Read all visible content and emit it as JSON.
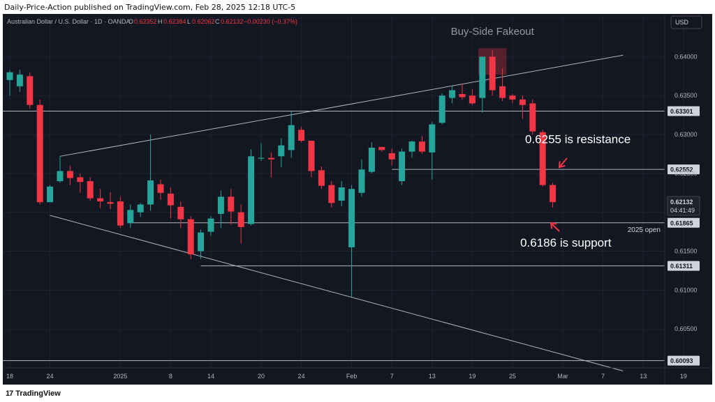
{
  "header": {
    "published_by": "Daily-Price-Action published on TradingView.com, Feb 28, 2025 12:18 UTC-5"
  },
  "symbol": {
    "name": "Australian Dollar / U.S. Dollar · 1D · OANDA",
    "ohlc_prefix_o": "O",
    "open": "0.62352",
    "ohlc_prefix_h": "H",
    "high": "0.62384",
    "ohlc_prefix_l": "L",
    "low": "0.62062",
    "ohlc_prefix_c": "C",
    "close": "0.62132",
    "change": "−0.00230 (−0.37%)"
  },
  "currency_button": "USD",
  "footer": {
    "brand": "TradingView",
    "brand_mark": "17"
  },
  "colors": {
    "background": "#131722",
    "up": "#26a69a",
    "down": "#f23645",
    "grid": "#1e2230",
    "level_line": "#b2b5be",
    "annotation": "#ffffff",
    "arrow": "#f23645",
    "axis_text": "#b2b5be"
  },
  "chart_data": {
    "type": "candlestick",
    "ylim": [
      0.6,
      0.6455
    ],
    "y_ticks": [
      "0.60000",
      "0.60500",
      "0.61000",
      "0.61500",
      "0.62000",
      "0.62500",
      "0.63000",
      "0.63500",
      "0.64000",
      "0.64500"
    ],
    "x_ticks": [
      "18",
      "24",
      "2025",
      "8",
      "14",
      "20",
      "24",
      "Feb",
      "7",
      "13",
      "19",
      "25",
      "Mar",
      "7",
      "13",
      "19"
    ],
    "x_tick_slots": [
      0,
      4,
      11,
      16,
      20,
      25,
      29,
      34,
      38,
      42,
      46,
      50,
      55,
      59,
      63,
      67
    ],
    "candles": [
      {
        "o": 0.637,
        "h": 0.6383,
        "l": 0.635,
        "c": 0.638
      },
      {
        "o": 0.6362,
        "h": 0.6383,
        "l": 0.6355,
        "c": 0.6377
      },
      {
        "o": 0.6375,
        "h": 0.638,
        "l": 0.6333,
        "c": 0.6338
      },
      {
        "o": 0.6338,
        "h": 0.6345,
        "l": 0.621,
        "c": 0.6213
      },
      {
        "o": 0.6213,
        "h": 0.6235,
        "l": 0.6213,
        "c": 0.6233
      },
      {
        "o": 0.624,
        "h": 0.6272,
        "l": 0.6238,
        "c": 0.6253
      },
      {
        "o": 0.6253,
        "h": 0.626,
        "l": 0.6235,
        "c": 0.6244
      },
      {
        "o": 0.6245,
        "h": 0.625,
        "l": 0.6225,
        "c": 0.6239
      },
      {
        "o": 0.624,
        "h": 0.6245,
        "l": 0.6215,
        "c": 0.6218
      },
      {
        "o": 0.6218,
        "h": 0.623,
        "l": 0.6205,
        "c": 0.6214
      },
      {
        "o": 0.6213,
        "h": 0.6226,
        "l": 0.6204,
        "c": 0.6211
      },
      {
        "o": 0.6214,
        "h": 0.622,
        "l": 0.618,
        "c": 0.6183
      },
      {
        "o": 0.6186,
        "h": 0.621,
        "l": 0.618,
        "c": 0.6203
      },
      {
        "o": 0.62,
        "h": 0.6212,
        "l": 0.6194,
        "c": 0.621
      },
      {
        "o": 0.621,
        "h": 0.63,
        "l": 0.6202,
        "c": 0.6241
      },
      {
        "o": 0.6236,
        "h": 0.6242,
        "l": 0.6216,
        "c": 0.6225
      },
      {
        "o": 0.6224,
        "h": 0.6232,
        "l": 0.6192,
        "c": 0.6209
      },
      {
        "o": 0.6207,
        "h": 0.6214,
        "l": 0.618,
        "c": 0.6191
      },
      {
        "o": 0.6191,
        "h": 0.6195,
        "l": 0.614,
        "c": 0.6146
      },
      {
        "o": 0.615,
        "h": 0.6178,
        "l": 0.614,
        "c": 0.6174
      },
      {
        "o": 0.6175,
        "h": 0.6195,
        "l": 0.617,
        "c": 0.6192
      },
      {
        "o": 0.6198,
        "h": 0.6228,
        "l": 0.618,
        "c": 0.622
      },
      {
        "o": 0.622,
        "h": 0.623,
        "l": 0.6184,
        "c": 0.6201
      },
      {
        "o": 0.62,
        "h": 0.621,
        "l": 0.616,
        "c": 0.6181
      },
      {
        "o": 0.6185,
        "h": 0.6281,
        "l": 0.6183,
        "c": 0.6272
      },
      {
        "o": 0.627,
        "h": 0.6289,
        "l": 0.6266,
        "c": 0.627
      },
      {
        "o": 0.627,
        "h": 0.6277,
        "l": 0.6245,
        "c": 0.6268
      },
      {
        "o": 0.6272,
        "h": 0.6295,
        "l": 0.6258,
        "c": 0.6286
      },
      {
        "o": 0.628,
        "h": 0.633,
        "l": 0.627,
        "c": 0.6312
      },
      {
        "o": 0.6306,
        "h": 0.631,
        "l": 0.629,
        "c": 0.6292
      },
      {
        "o": 0.6292,
        "h": 0.6292,
        "l": 0.6245,
        "c": 0.6253
      },
      {
        "o": 0.6254,
        "h": 0.6259,
        "l": 0.623,
        "c": 0.6234
      },
      {
        "o": 0.6235,
        "h": 0.624,
        "l": 0.6206,
        "c": 0.6212
      },
      {
        "o": 0.6215,
        "h": 0.624,
        "l": 0.6208,
        "c": 0.6232
      },
      {
        "o": 0.6155,
        "h": 0.6235,
        "l": 0.609,
        "c": 0.623
      },
      {
        "o": 0.6225,
        "h": 0.6268,
        "l": 0.622,
        "c": 0.6255
      },
      {
        "o": 0.6252,
        "h": 0.629,
        "l": 0.625,
        "c": 0.6283
      },
      {
        "o": 0.6284,
        "h": 0.6284,
        "l": 0.6278,
        "c": 0.628
      },
      {
        "o": 0.6276,
        "h": 0.6282,
        "l": 0.626,
        "c": 0.6268
      },
      {
        "o": 0.624,
        "h": 0.6282,
        "l": 0.6235,
        "c": 0.6278
      },
      {
        "o": 0.6278,
        "h": 0.6292,
        "l": 0.627,
        "c": 0.6291
      },
      {
        "o": 0.6291,
        "h": 0.6298,
        "l": 0.6275,
        "c": 0.6278
      },
      {
        "o": 0.6277,
        "h": 0.6316,
        "l": 0.6242,
        "c": 0.6313
      },
      {
        "o": 0.6315,
        "h": 0.6353,
        "l": 0.6313,
        "c": 0.635
      },
      {
        "o": 0.6347,
        "h": 0.6363,
        "l": 0.634,
        "c": 0.6357
      },
      {
        "o": 0.6352,
        "h": 0.6365,
        "l": 0.6345,
        "c": 0.6348
      },
      {
        "o": 0.635,
        "h": 0.6358,
        "l": 0.6338,
        "c": 0.634
      },
      {
        "o": 0.6347,
        "h": 0.64,
        "l": 0.6328,
        "c": 0.64
      },
      {
        "o": 0.64,
        "h": 0.6408,
        "l": 0.635,
        "c": 0.6357
      },
      {
        "o": 0.6362,
        "h": 0.6385,
        "l": 0.6343,
        "c": 0.6347
      },
      {
        "o": 0.635,
        "h": 0.6352,
        "l": 0.634,
        "c": 0.6345
      },
      {
        "o": 0.6345,
        "h": 0.635,
        "l": 0.632,
        "c": 0.6338
      },
      {
        "o": 0.634,
        "h": 0.6345,
        "l": 0.63,
        "c": 0.6304
      },
      {
        "o": 0.6303,
        "h": 0.6306,
        "l": 0.6233,
        "c": 0.6235
      },
      {
        "o": 0.6235,
        "h": 0.6238,
        "l": 0.6206,
        "c": 0.6213
      }
    ],
    "horizontal_levels": [
      {
        "price": 0.63301,
        "label": "0.63301",
        "from_slot": 0
      },
      {
        "price": 0.62552,
        "label": "0.62552",
        "from_slot": 38
      },
      {
        "price": 0.61865,
        "label": "0.61865",
        "from_slot": 12,
        "tag": "2025 open"
      },
      {
        "price": 0.61311,
        "label": "0.61311",
        "from_slot": 19
      },
      {
        "price": 0.60093,
        "label": "0.60093",
        "from_slot": 0
      }
    ],
    "current_price": {
      "label": "0.62132",
      "countdown": "04:41:49",
      "price": 0.62132
    },
    "trendlines": [
      {
        "p1": [
          5,
          0.6272
        ],
        "p2": [
          61,
          0.6402
        ]
      },
      {
        "p1": [
          4,
          0.6196
        ],
        "p2": [
          61,
          0.5996
        ]
      }
    ],
    "annotations": [
      {
        "text": "Buy-Side Fakeout",
        "slot": 48,
        "price": 0.6428,
        "muted": true
      },
      {
        "text": "0.6255 is resistance",
        "slot": 56.5,
        "price": 0.6289
      },
      {
        "text": "0.6186 is support",
        "slot": 55.3,
        "price": 0.6156
      }
    ],
    "fakeout_box": {
      "slot_from": 46.6,
      "slot_to": 49.4,
      "price_from": 0.6377,
      "price_to": 0.6411
    }
  }
}
